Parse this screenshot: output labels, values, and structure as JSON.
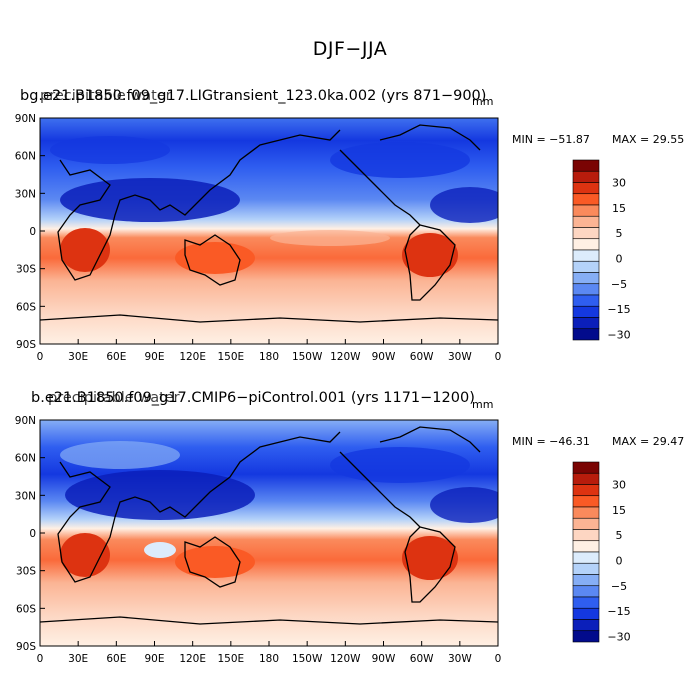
{
  "title": "DJF−JJA",
  "panels": [
    {
      "case_label": "bg.e21.B1850.f09_g17.LIGtransient_123.0ka.002 (yrs 871−900)",
      "overlay_label": "precipitable water",
      "units": "mm",
      "min_label": "MIN = −51.87",
      "max_label": "MAX =  29.55"
    },
    {
      "case_label": "b.e21.B1850.f09_g17.CMIP6−piControl.001 (yrs 1171−1200)",
      "overlay_label": "precipitable water",
      "units": "mm",
      "min_label": "MIN = −46.31",
      "max_label": "MAX =  29.47"
    }
  ],
  "axes": {
    "lat_labels": [
      "90N",
      "60N",
      "30N",
      "0",
      "30S",
      "60S",
      "90S"
    ],
    "lon_labels": [
      "0",
      "30E",
      "60E",
      "90E",
      "120E",
      "150E",
      "180",
      "150W",
      "120W",
      "90W",
      "60W",
      "30W",
      "0"
    ]
  },
  "colorbar": {
    "labels": [
      "30",
      "15",
      "5",
      "0",
      "−5",
      "−15",
      "−30"
    ],
    "colors": [
      "#7a0403",
      "#b71c0c",
      "#dd3311",
      "#fa5a25",
      "#fa8a5c",
      "#fbb494",
      "#fdd6c2",
      "#fff0e4",
      "#dcecfc",
      "#b4d2f9",
      "#86aef5",
      "#5b88f2",
      "#2f5ef0",
      "#1438e0",
      "#0b1fba",
      "#020b8c"
    ]
  },
  "colors": {
    "frame": "#000000",
    "coast": "#000000"
  }
}
